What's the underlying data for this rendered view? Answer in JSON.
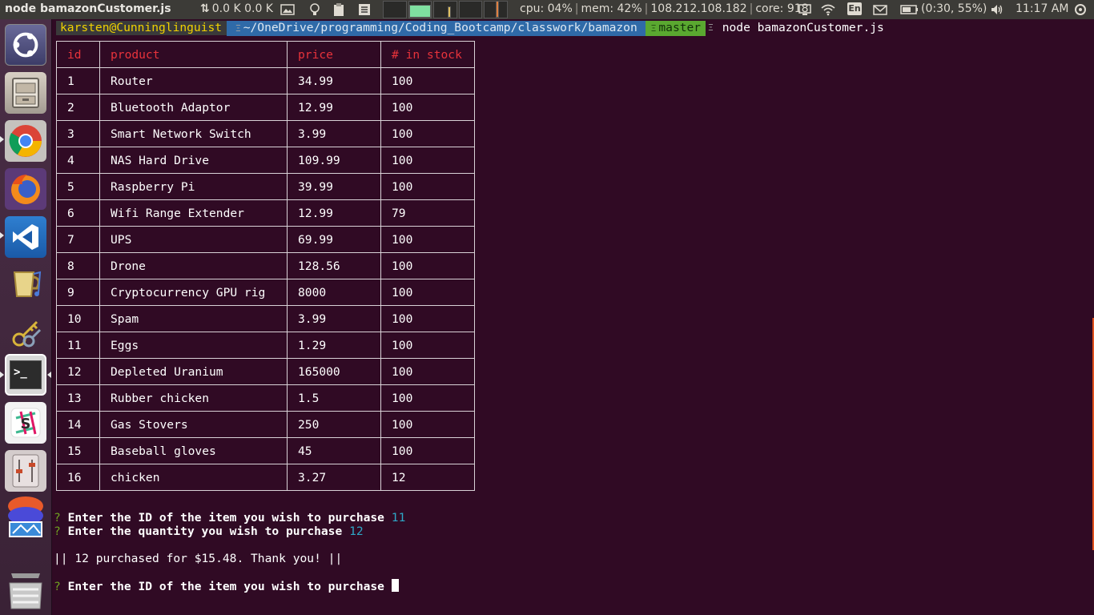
{
  "topbar": {
    "window_title": "node bamazonCustomer.js",
    "net_down": "0.0 K",
    "net_up": "0.0 K",
    "net_arrows": "⇅",
    "cpu": "cpu: 04%",
    "mem": "mem: 42%",
    "ip": "108.212.108.182",
    "core": "core: 918",
    "lang": "En",
    "battery": "(0:30, 55%)",
    "clock": "11:17 AM"
  },
  "launcher": {
    "items": [
      {
        "name": "ubuntu-dash",
        "glyph": "◎"
      },
      {
        "name": "files",
        "glyph": ""
      },
      {
        "name": "chrome",
        "glyph": ""
      },
      {
        "name": "firefox",
        "glyph": ""
      },
      {
        "name": "vscode",
        "glyph": "⋊"
      },
      {
        "name": "rhythmbox",
        "glyph": "♫"
      },
      {
        "name": "passwords-keys",
        "glyph": "⚷"
      },
      {
        "name": "terminal",
        "glyph": ">_"
      },
      {
        "name": "slack",
        "glyph": "S"
      },
      {
        "name": "mixer",
        "glyph": "≡"
      },
      {
        "name": "overlapping-apps",
        "glyph": ""
      },
      {
        "name": "overlapping-apps-2",
        "glyph": ""
      }
    ]
  },
  "terminal": {
    "prompt": {
      "user_host": "karsten@Cunninglinguist",
      "path": "~/OneDrive/programming/Coding_Bootcamp/classwork/bamazon",
      "git_branch": "master",
      "command": "node bamazonCustomer.js",
      "sep_icon": "Ξ"
    },
    "table": {
      "headers": [
        "id",
        "product",
        "price",
        "# in stock"
      ],
      "rows": [
        [
          "1",
          "Router",
          "34.99",
          "100"
        ],
        [
          "2",
          "Bluetooth Adaptor",
          "12.99",
          "100"
        ],
        [
          "3",
          "Smart Network Switch",
          "3.99",
          "100"
        ],
        [
          "4",
          "NAS Hard Drive",
          "109.99",
          "100"
        ],
        [
          "5",
          "Raspberry Pi",
          "39.99",
          "100"
        ],
        [
          "6",
          "Wifi Range Extender",
          "12.99",
          "79"
        ],
        [
          "7",
          "UPS",
          "69.99",
          "100"
        ],
        [
          "8",
          "Drone",
          "128.56",
          "100"
        ],
        [
          "9",
          "Cryptocurrency GPU rig",
          "8000",
          "100"
        ],
        [
          "10",
          "Spam",
          "3.99",
          "100"
        ],
        [
          "11",
          "Eggs",
          "1.29",
          "100"
        ],
        [
          "12",
          "Depleted Uranium",
          "165000",
          "100"
        ],
        [
          "13",
          "Rubber chicken",
          "1.5",
          "100"
        ],
        [
          "14",
          "Gas Stovers",
          "250",
          "100"
        ],
        [
          "15",
          "Baseball gloves",
          "45",
          "100"
        ],
        [
          "16",
          "chicken",
          "3.27",
          "12"
        ]
      ]
    },
    "q_mark": "?",
    "question_id": "Enter the ID of the item you wish to purchase",
    "answer_id": "11",
    "question_qty": "Enter the quantity you wish to purchase",
    "answer_qty": "12",
    "result": "|| 12 purchased for $15.48. Thank you! ||",
    "question_id_again": "Enter the ID of the item you wish to purchase"
  },
  "colors": {
    "terminal_bg": "#300a24",
    "table_header": "#e8333b",
    "prompt_user": "#f0d200",
    "path_bg": "#2f6aa8",
    "git_bg": "#5aa830",
    "answer": "#2ea8c8"
  }
}
